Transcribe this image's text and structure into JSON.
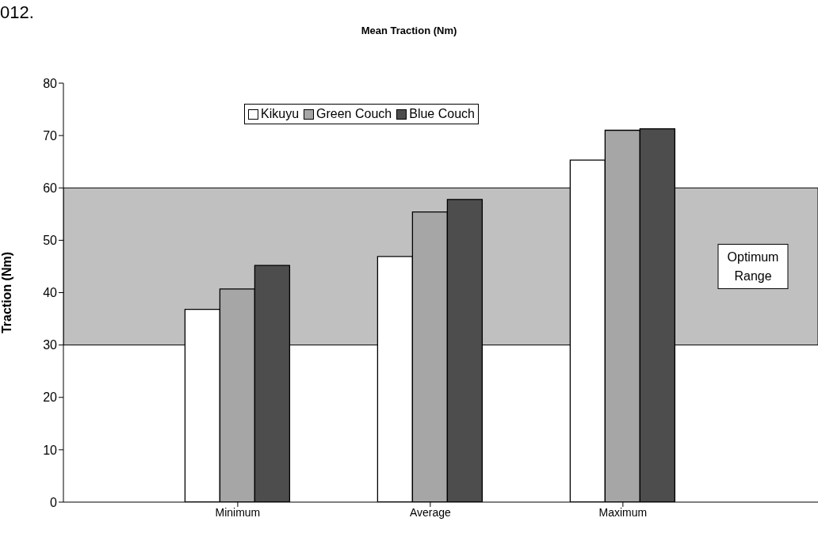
{
  "chart_data": {
    "type": "bar",
    "title": "Mean Traction (Nm)",
    "ylabel": "Traction (Nm)",
    "annotations": [
      "012."
    ],
    "categories": [
      "Minimum",
      "Average",
      "Maximum"
    ],
    "series": [
      {
        "name": "Kikuyu",
        "color": "#ffffff",
        "values": [
          36.8,
          46.9,
          65.3
        ]
      },
      {
        "name": "Green Couch",
        "color": "#a6a6a6",
        "values": [
          40.7,
          55.4,
          71.0
        ]
      },
      {
        "name": "Blue Couch",
        "color": "#4d4d4d",
        "values": [
          45.2,
          57.8,
          71.3
        ]
      }
    ],
    "ylim": [
      0,
      80
    ],
    "yticks": [
      0,
      10,
      20,
      30,
      40,
      50,
      60,
      70,
      80
    ],
    "bands": [
      {
        "axis": "y",
        "from": 30,
        "to": 60,
        "label": "Optimum Range",
        "color": "#c0c0c0"
      }
    ],
    "legend": "top",
    "grid": false
  }
}
